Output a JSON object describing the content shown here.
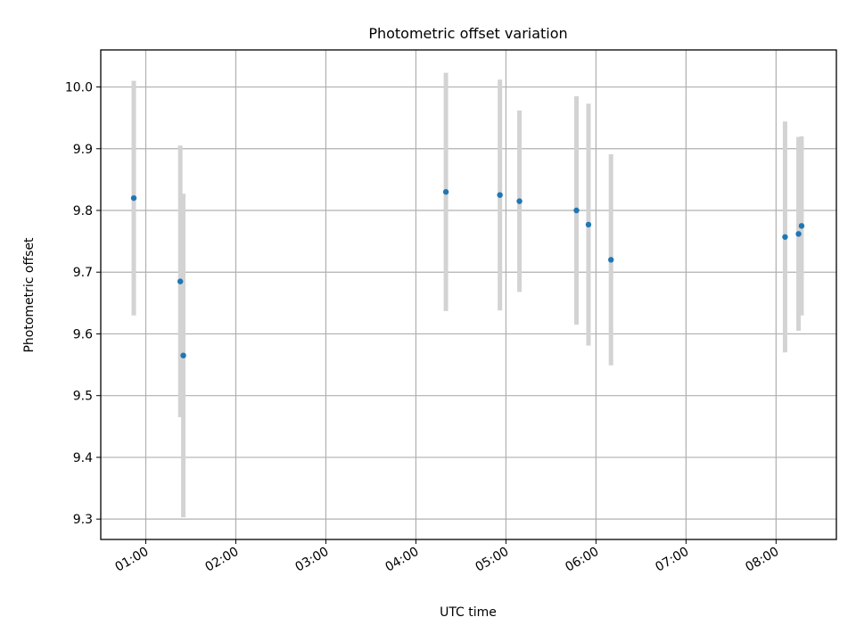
{
  "chart_data": {
    "type": "scatter",
    "title": "Photometric offset variation",
    "xlabel": "UTC time",
    "ylabel": "Photometric offset",
    "x_ticks": [
      "01:00",
      "02:00",
      "03:00",
      "04:00",
      "05:00",
      "06:00",
      "07:00",
      "08:00"
    ],
    "x_tick_values_hours": [
      1,
      2,
      3,
      4,
      5,
      6,
      7,
      8
    ],
    "xlim_hours": [
      0.5,
      8.67
    ],
    "y_ticks": [
      "9.3",
      "9.4",
      "9.5",
      "9.6",
      "9.7",
      "9.8",
      "9.9",
      "10.0"
    ],
    "y_tick_values": [
      9.3,
      9.4,
      9.5,
      9.6,
      9.7,
      9.8,
      9.9,
      10.0
    ],
    "ylim": [
      9.267,
      10.06
    ],
    "grid": true,
    "marker_color": "#1f77b4",
    "errorbar_color": "#d3d3d3",
    "points": [
      {
        "x": "00:52",
        "y": 9.82,
        "err": 0.19
      },
      {
        "x": "01:23",
        "y": 9.685,
        "err": 0.22
      },
      {
        "x": "01:25",
        "y": 9.565,
        "err": 0.262
      },
      {
        "x": "04:20",
        "y": 9.83,
        "err": 0.193
      },
      {
        "x": "04:56",
        "y": 9.825,
        "err": 0.187
      },
      {
        "x": "05:09",
        "y": 9.815,
        "err": 0.147
      },
      {
        "x": "05:47",
        "y": 9.8,
        "err": 0.185
      },
      {
        "x": "05:55",
        "y": 9.777,
        "err": 0.196
      },
      {
        "x": "06:10",
        "y": 9.72,
        "err": 0.171
      },
      {
        "x": "08:06",
        "y": 9.757,
        "err": 0.187
      },
      {
        "x": "08:15",
        "y": 9.762,
        "err": 0.157
      },
      {
        "x": "08:17",
        "y": 9.775,
        "err": 0.145
      }
    ]
  }
}
